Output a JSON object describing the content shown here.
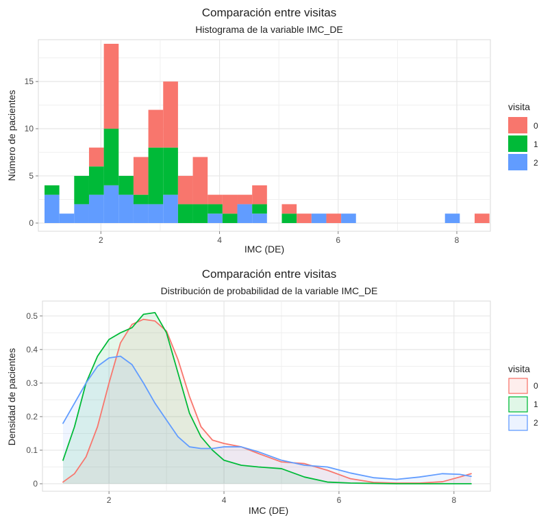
{
  "charts": {
    "top": {
      "title": "Comparación entre visitas",
      "subtitle": "Histograma de la variable IMC_DE",
      "xlabel": "IMC (DE)",
      "ylabel": "Número de pacientes"
    },
    "bottom": {
      "title": "Comparación entre visitas",
      "subtitle": "Distribución de probabilidad de la variable IMC_DE",
      "xlabel": "IMC (DE)",
      "ylabel": "Densidad de pacientes"
    }
  },
  "legend": {
    "title": "visita",
    "items": [
      "0",
      "1",
      "2"
    ]
  },
  "colors": {
    "visit0": "#F8766D",
    "visit1": "#00BA38",
    "visit2": "#619CFF"
  },
  "chart_data": [
    {
      "type": "bar",
      "stacked": true,
      "title": "Comparación entre visitas",
      "subtitle": "Histograma de la variable IMC_DE",
      "xlabel": "IMC (DE)",
      "ylabel": "Número de pacientes",
      "xlim": [
        1.2,
        8.3
      ],
      "ylim": [
        0,
        19
      ],
      "xticks": [
        2,
        4,
        6,
        8
      ],
      "yticks": [
        0,
        5,
        10,
        15
      ],
      "grid": true,
      "legend_position": "right",
      "legend_title": "visita",
      "bins": [
        {
          "start": 1.05,
          "end": 1.3,
          "visit0": 0,
          "visit1": 1,
          "visit2": 3
        },
        {
          "start": 1.3,
          "end": 1.55,
          "visit0": 0,
          "visit1": 0,
          "visit2": 1
        },
        {
          "start": 1.55,
          "end": 1.8,
          "visit0": 0,
          "visit1": 3,
          "visit2": 2
        },
        {
          "start": 1.8,
          "end": 2.05,
          "visit0": 2,
          "visit1": 3,
          "visit2": 3
        },
        {
          "start": 2.05,
          "end": 2.3,
          "visit0": 9,
          "visit1": 6,
          "visit2": 4
        },
        {
          "start": 2.3,
          "end": 2.55,
          "visit0": 0,
          "visit1": 2,
          "visit2": 3
        },
        {
          "start": 2.55,
          "end": 2.8,
          "visit0": 4,
          "visit1": 1,
          "visit2": 2
        },
        {
          "start": 2.8,
          "end": 3.05,
          "visit0": 4,
          "visit1": 6,
          "visit2": 2
        },
        {
          "start": 3.05,
          "end": 3.3,
          "visit0": 7,
          "visit1": 5,
          "visit2": 3
        },
        {
          "start": 3.3,
          "end": 3.55,
          "visit0": 3,
          "visit1": 2,
          "visit2": 0
        },
        {
          "start": 3.55,
          "end": 3.8,
          "visit0": 5,
          "visit1": 2,
          "visit2": 0
        },
        {
          "start": 3.8,
          "end": 4.05,
          "visit0": 1,
          "visit1": 1,
          "visit2": 1
        },
        {
          "start": 4.05,
          "end": 4.3,
          "visit0": 2,
          "visit1": 1,
          "visit2": 0
        },
        {
          "start": 4.3,
          "end": 4.55,
          "visit0": 1,
          "visit1": 0,
          "visit2": 2
        },
        {
          "start": 4.55,
          "end": 4.8,
          "visit0": 2,
          "visit1": 1,
          "visit2": 1
        },
        {
          "start": 4.8,
          "end": 5.05,
          "visit0": 0,
          "visit1": 0,
          "visit2": 0
        },
        {
          "start": 5.05,
          "end": 5.3,
          "visit0": 1,
          "visit1": 1,
          "visit2": 0
        },
        {
          "start": 5.3,
          "end": 5.55,
          "visit0": 1,
          "visit1": 0,
          "visit2": 0
        },
        {
          "start": 5.55,
          "end": 5.8,
          "visit0": 0,
          "visit1": 0,
          "visit2": 1
        },
        {
          "start": 5.8,
          "end": 6.05,
          "visit0": 1,
          "visit1": 0,
          "visit2": 0
        },
        {
          "start": 6.05,
          "end": 6.3,
          "visit0": 0,
          "visit1": 0,
          "visit2": 1
        },
        {
          "start": 6.3,
          "end": 6.55,
          "visit0": 0,
          "visit1": 0,
          "visit2": 0
        },
        {
          "start": 6.55,
          "end": 6.8,
          "visit0": 0,
          "visit1": 0,
          "visit2": 0
        },
        {
          "start": 6.8,
          "end": 7.05,
          "visit0": 0,
          "visit1": 0,
          "visit2": 0
        },
        {
          "start": 7.05,
          "end": 7.3,
          "visit0": 0,
          "visit1": 0,
          "visit2": 0
        },
        {
          "start": 7.3,
          "end": 7.55,
          "visit0": 0,
          "visit1": 0,
          "visit2": 0
        },
        {
          "start": 7.55,
          "end": 7.8,
          "visit0": 0,
          "visit1": 0,
          "visit2": 0
        },
        {
          "start": 7.8,
          "end": 8.05,
          "visit0": 0,
          "visit1": 0,
          "visit2": 1
        },
        {
          "start": 8.05,
          "end": 8.3,
          "visit0": 0,
          "visit1": 0,
          "visit2": 0
        },
        {
          "start": 8.3,
          "end": 8.55,
          "visit0": 1,
          "visit1": 0,
          "visit2": 0
        }
      ]
    },
    {
      "type": "area",
      "title": "Comparación entre visitas",
      "subtitle": "Distribución de probabilidad de la variable IMC_DE",
      "xlabel": "IMC (DE)",
      "ylabel": "Densidad de pacientes",
      "xlim": [
        1.2,
        8.3
      ],
      "ylim": [
        0,
        0.52
      ],
      "xticks": [
        2,
        4,
        6,
        8
      ],
      "yticks": [
        0,
        0.1,
        0.2,
        0.3,
        0.4,
        0.5
      ],
      "grid": true,
      "legend_position": "right",
      "legend_title": "visita",
      "series": [
        {
          "name": "0",
          "x": [
            1.2,
            1.4,
            1.6,
            1.8,
            2.0,
            2.2,
            2.4,
            2.6,
            2.8,
            3.0,
            3.2,
            3.4,
            3.6,
            3.8,
            4.0,
            4.3,
            4.6,
            5.0,
            5.4,
            5.8,
            6.2,
            6.6,
            7.0,
            7.4,
            7.8,
            8.1,
            8.3
          ],
          "values": [
            0.005,
            0.03,
            0.08,
            0.17,
            0.3,
            0.42,
            0.475,
            0.49,
            0.485,
            0.455,
            0.37,
            0.26,
            0.17,
            0.13,
            0.12,
            0.11,
            0.09,
            0.065,
            0.06,
            0.04,
            0.015,
            0.004,
            0.002,
            0.002,
            0.006,
            0.02,
            0.03
          ]
        },
        {
          "name": "1",
          "x": [
            1.2,
            1.4,
            1.6,
            1.8,
            2.0,
            2.2,
            2.4,
            2.6,
            2.8,
            3.0,
            3.2,
            3.4,
            3.6,
            3.8,
            4.0,
            4.3,
            4.6,
            5.0,
            5.4,
            5.8,
            6.2,
            6.6,
            7.0,
            7.4,
            7.8,
            8.1,
            8.3
          ],
          "values": [
            0.07,
            0.17,
            0.3,
            0.38,
            0.43,
            0.45,
            0.465,
            0.505,
            0.51,
            0.45,
            0.33,
            0.21,
            0.14,
            0.1,
            0.07,
            0.055,
            0.05,
            0.045,
            0.02,
            0.005,
            0.002,
            0.001,
            0.0,
            0.0,
            0.0,
            0.0,
            0.0
          ]
        },
        {
          "name": "2",
          "x": [
            1.2,
            1.4,
            1.6,
            1.8,
            2.0,
            2.2,
            2.4,
            2.6,
            2.8,
            3.0,
            3.2,
            3.4,
            3.6,
            3.8,
            4.0,
            4.3,
            4.6,
            5.0,
            5.4,
            5.8,
            6.2,
            6.6,
            7.0,
            7.4,
            7.8,
            8.1,
            8.3
          ],
          "values": [
            0.18,
            0.24,
            0.3,
            0.35,
            0.375,
            0.38,
            0.355,
            0.3,
            0.24,
            0.19,
            0.14,
            0.11,
            0.105,
            0.105,
            0.11,
            0.11,
            0.095,
            0.07,
            0.055,
            0.05,
            0.032,
            0.018,
            0.013,
            0.02,
            0.03,
            0.028,
            0.022
          ]
        }
      ]
    }
  ]
}
